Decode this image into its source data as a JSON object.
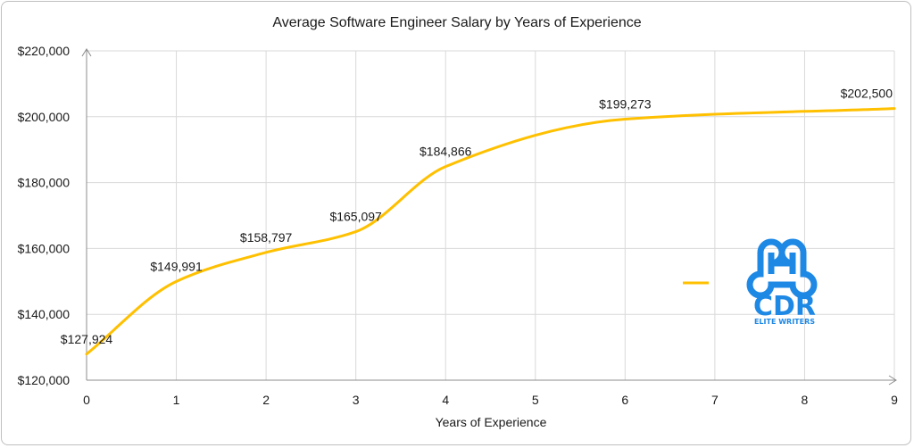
{
  "chart_data": {
    "type": "line",
    "title": "Average Software Engineer Salary by Years of Experience",
    "xlabel": "Years of Experience",
    "ylabel": "",
    "xlim": [
      0,
      9
    ],
    "ylim": [
      120000,
      220000
    ],
    "x_ticks": [
      "0",
      "1",
      "2",
      "3",
      "4",
      "5",
      "6",
      "7",
      "8",
      "9"
    ],
    "y_ticks": [
      "$120,000",
      "$140,000",
      "$160,000",
      "$180,000",
      "$200,000",
      "$220,000"
    ],
    "grid": true,
    "smooth": true,
    "series": [
      {
        "color": "#FFC000",
        "points": [
          {
            "x": 0,
            "y": 127924,
            "label": "$127,924"
          },
          {
            "x": 1,
            "y": 149991,
            "label": "$149,991"
          },
          {
            "x": 2,
            "y": 158797,
            "label": "$158,797"
          },
          {
            "x": 3,
            "y": 165097,
            "label": "$165,097"
          },
          {
            "x": 4,
            "y": 184866,
            "label": "$184,866"
          },
          {
            "x": 6,
            "y": 199273,
            "label": "$199,273"
          },
          {
            "x": 9,
            "y": 202500,
            "label": "$202,500"
          }
        ]
      }
    ],
    "legend": "right"
  },
  "logo": {
    "text": "CDR",
    "subtext": "ELITE WRITERS",
    "color": "#1E88E5"
  }
}
